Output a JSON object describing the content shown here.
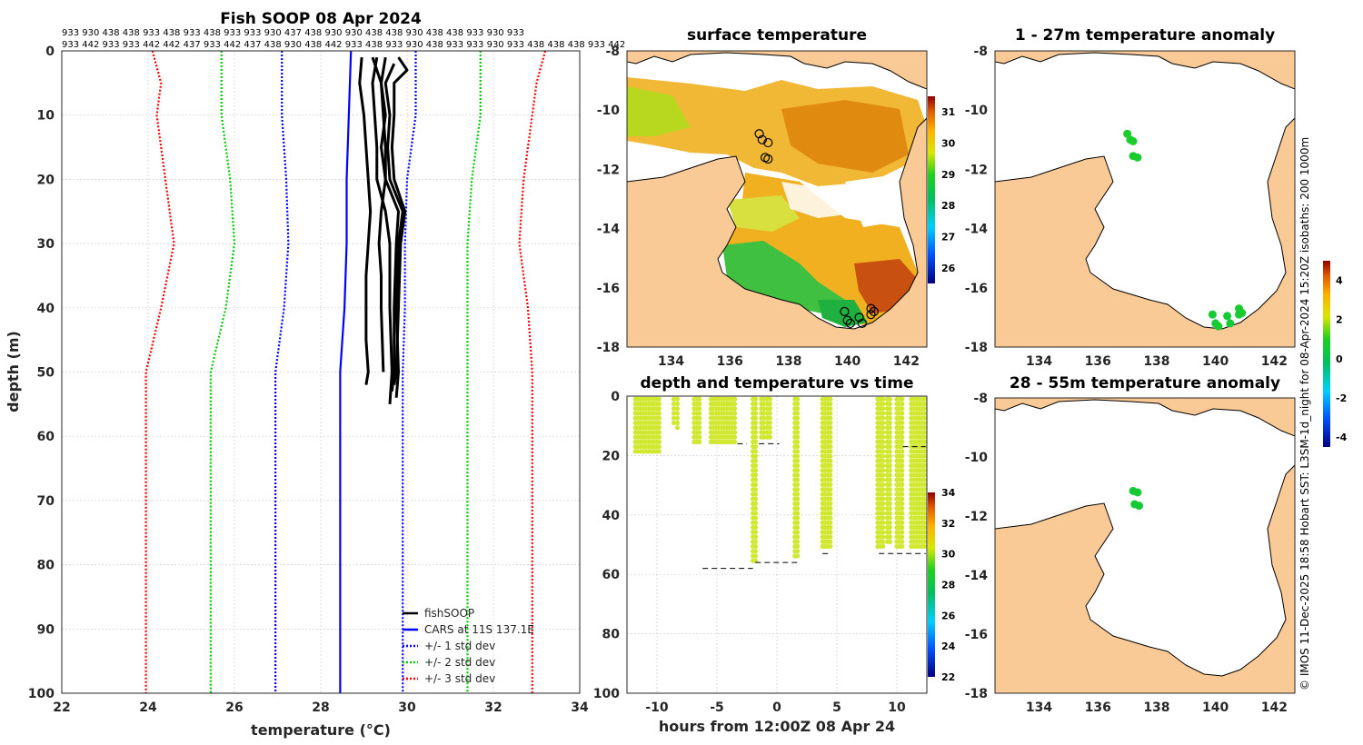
{
  "credit": "© IMOS 11-Dec-2025 18:58 Hobart SST: L3SM-1d_night for 08-Apr-2024 15:20Z isobaths: 200  1000m",
  "anomaly_colorbar": {
    "ticks": [
      "-4",
      "-2",
      "0",
      "2",
      "4"
    ]
  },
  "chart_data": [
    {
      "id": "profile",
      "type": "line",
      "title": "Fish SOOP 08 Apr 2024",
      "xlabel": "temperature (°C)",
      "ylabel": "depth (m)",
      "xlim": [
        22,
        34
      ],
      "ylim": [
        100,
        0
      ],
      "xticks": [
        "22",
        "24",
        "26",
        "28",
        "30",
        "32",
        "34"
      ],
      "yticks": [
        "0",
        "10",
        "20",
        "30",
        "40",
        "50",
        "60",
        "70",
        "80",
        "90",
        "100"
      ],
      "top_labels_row1": "933 930 438 438 933 438 933 438 933 933 930 437 438 930 930 438 438 930 438 438 933 930 933",
      "top_labels_row2": "933 442 933 933 442 442 437 933 442 437 438 930 438 442 933 438 933 930 438 933 933 930 933 438 438 438 933 442",
      "legend": [
        "fishSOOP",
        "CARS at 11S 137.1E",
        "+/- 1 std dev",
        "+/- 2 std dev",
        "+/- 3 std dev"
      ],
      "series": [
        {
          "name": "CARS at 11S 137.1E",
          "color": "#0000ff",
          "style": "solid",
          "depth": [
            0,
            10,
            20,
            30,
            40,
            50,
            100
          ],
          "temp": [
            28.7,
            28.65,
            28.6,
            28.6,
            28.55,
            28.45,
            28.45
          ]
        },
        {
          "name": "+1 std dev",
          "color": "#0000ff",
          "style": "dotted",
          "depth": [
            0,
            10,
            20,
            30,
            40,
            50,
            100
          ],
          "temp": [
            30.2,
            30.2,
            30.0,
            29.95,
            29.95,
            29.9,
            29.9
          ]
        },
        {
          "name": "-1 std dev",
          "color": "#0000ff",
          "style": "dotted",
          "depth": [
            0,
            10,
            20,
            30,
            40,
            50,
            100
          ],
          "temp": [
            27.1,
            27.1,
            27.2,
            27.25,
            27.15,
            26.95,
            26.95
          ]
        },
        {
          "name": "+2 std dev",
          "color": "#00cc00",
          "style": "dotted",
          "depth": [
            0,
            10,
            20,
            30,
            40,
            50,
            100
          ],
          "temp": [
            31.7,
            31.7,
            31.5,
            31.4,
            31.4,
            31.4,
            31.4
          ]
        },
        {
          "name": "-2 std dev",
          "color": "#00cc00",
          "style": "dotted",
          "depth": [
            0,
            10,
            20,
            30,
            40,
            50,
            100
          ],
          "temp": [
            25.7,
            25.7,
            25.9,
            26.0,
            25.8,
            25.45,
            25.45
          ]
        },
        {
          "name": "+3 std dev",
          "color": "#ff0000",
          "style": "dotted",
          "depth": [
            0,
            5,
            10,
            20,
            30,
            40,
            50,
            100
          ],
          "temp": [
            33.2,
            33.0,
            32.9,
            32.7,
            32.6,
            32.8,
            32.9,
            32.9
          ]
        },
        {
          "name": "-3 std dev",
          "color": "#ff0000",
          "style": "dotted",
          "depth": [
            0,
            5,
            10,
            20,
            30,
            40,
            50,
            100
          ],
          "temp": [
            24.1,
            24.3,
            24.2,
            24.4,
            24.6,
            24.3,
            23.95,
            23.95
          ]
        },
        {
          "name": "fishSOOP",
          "color": "#000000",
          "style": "solid",
          "casts": [
            {
              "depth": [
                1,
                5,
                10,
                15,
                20,
                25,
                30,
                35,
                40,
                45,
                50,
                52
              ],
              "temp": [
                28.95,
                28.9,
                29.0,
                29.05,
                29.1,
                29.15,
                29.1,
                29.05,
                29.05,
                29.05,
                29.1,
                29.05
              ]
            },
            {
              "depth": [
                1,
                5,
                10,
                15,
                20,
                25,
                30,
                40,
                50,
                55
              ],
              "temp": [
                29.3,
                29.2,
                29.25,
                29.3,
                29.3,
                29.5,
                29.6,
                29.6,
                29.65,
                29.6
              ]
            },
            {
              "depth": [
                1,
                5,
                10,
                15,
                20,
                25,
                30,
                40,
                50,
                53
              ],
              "temp": [
                29.5,
                29.4,
                29.45,
                29.5,
                29.5,
                29.8,
                29.75,
                29.7,
                29.7,
                29.65
              ]
            },
            {
              "depth": [
                2,
                5,
                10,
                15,
                20,
                25,
                30,
                40,
                50,
                54
              ],
              "temp": [
                29.7,
                29.5,
                29.6,
                29.55,
                29.6,
                29.9,
                29.8,
                29.75,
                29.8,
                29.75
              ]
            },
            {
              "depth": [
                1,
                3,
                5,
                10,
                15,
                20,
                25,
                30,
                40,
                50,
                52
              ],
              "temp": [
                29.8,
                30.0,
                29.7,
                29.7,
                29.65,
                29.7,
                29.95,
                29.85,
                29.8,
                29.75,
                29.7
              ]
            },
            {
              "depth": [
                1,
                5,
                10,
                15,
                20,
                25,
                30,
                35,
                40,
                50
              ],
              "temp": [
                29.2,
                29.4,
                29.5,
                29.4,
                29.5,
                29.4,
                29.35,
                29.4,
                29.4,
                29.45
              ]
            }
          ]
        }
      ]
    },
    {
      "id": "surface-temperature",
      "type": "heatmap",
      "title": "surface temperature",
      "xlim": [
        132.5,
        142.7
      ],
      "ylim": [
        -18,
        -8
      ],
      "xticks": [
        "134",
        "136",
        "138",
        "140",
        "142"
      ],
      "yticks": [
        "-8",
        "-10",
        "-12",
        "-14",
        "-16",
        "-18"
      ],
      "colorbar_ticks": [
        "26",
        "27",
        "28",
        "29",
        "30",
        "31"
      ],
      "stations": [
        {
          "lon": 137.0,
          "lat": -10.8
        },
        {
          "lon": 137.1,
          "lat": -11.0
        },
        {
          "lon": 137.3,
          "lat": -11.1
        },
        {
          "lon": 137.2,
          "lat": -11.6
        },
        {
          "lon": 137.3,
          "lat": -11.65
        },
        {
          "lon": 139.9,
          "lat": -16.8
        },
        {
          "lon": 140.0,
          "lat": -17.1
        },
        {
          "lon": 140.1,
          "lat": -17.2
        },
        {
          "lon": 140.4,
          "lat": -17.0
        },
        {
          "lon": 140.5,
          "lat": -17.2
        },
        {
          "lon": 140.8,
          "lat": -16.7
        },
        {
          "lon": 140.8,
          "lat": -16.9
        },
        {
          "lon": 140.9,
          "lat": -16.8
        }
      ]
    },
    {
      "id": "depth-time",
      "type": "scatter",
      "title": "depth and temperature vs time",
      "xlabel": "hours from 12:00Z 08 Apr 24",
      "xlim": [
        -12.5,
        12.5
      ],
      "ylim": [
        100,
        0
      ],
      "xticks": [
        "-10",
        "-5",
        "0",
        "5",
        "10"
      ],
      "yticks": [
        "0",
        "20",
        "40",
        "60",
        "80",
        "100"
      ],
      "colorbar_ticks": [
        "22",
        "24",
        "26",
        "28",
        "30",
        "32",
        "34"
      ],
      "casts": [
        {
          "t0": -11.8,
          "t1": -9.8,
          "dmax": 19
        },
        {
          "t0": -8.6,
          "t1": -8.4,
          "dmax": 10
        },
        {
          "t0": -8.3,
          "t1": -8.1,
          "dmax": 12
        },
        {
          "t0": -6.9,
          "t1": -6.4,
          "dmax": 16
        },
        {
          "t0": -5.5,
          "t1": -3.4,
          "dmax": 16
        },
        {
          "t0": -2.0,
          "t1": -1.6,
          "dmax": 56
        },
        {
          "t0": -1.3,
          "t1": -0.9,
          "dmax": 15
        },
        {
          "t0": -0.8,
          "t1": -0.4,
          "dmax": 15
        },
        {
          "t0": 1.5,
          "t1": 1.9,
          "dmax": 54
        },
        {
          "t0": 3.8,
          "t1": 4.5,
          "dmax": 52
        },
        {
          "t0": 8.4,
          "t1": 9.0,
          "dmax": 52
        },
        {
          "t0": 9.2,
          "t1": 9.6,
          "dmax": 50
        },
        {
          "t0": 10.0,
          "t1": 10.6,
          "dmax": 52
        },
        {
          "t0": 11.2,
          "t1": 12.4,
          "dmax": 52
        }
      ],
      "bottom_depth_marks": [
        {
          "t0": -6.2,
          "t1": -2.0,
          "d": 58
        },
        {
          "t0": -1.8,
          "t1": 1.8,
          "d": 56
        },
        {
          "t0": 3.8,
          "t1": 4.5,
          "d": 53
        },
        {
          "t0": 8.5,
          "t1": 12.4,
          "d": 53
        },
        {
          "t0": -1.5,
          "t1": 0.2,
          "d": 16
        },
        {
          "t0": -3.3,
          "t1": -2.5,
          "d": 16
        },
        {
          "t0": 10.5,
          "t1": 12.4,
          "d": 17
        }
      ]
    },
    {
      "id": "anomaly-1-27m",
      "type": "scatter",
      "title": "1 - 27m temperature anomaly",
      "xlim": [
        132.5,
        142.7
      ],
      "ylim": [
        -18,
        -8
      ],
      "xticks": [
        "134",
        "136",
        "138",
        "140",
        "142"
      ],
      "yticks": [
        "-8",
        "-10",
        "-12",
        "-14",
        "-16",
        "-18"
      ],
      "points": [
        {
          "lon": 137.0,
          "lat": -10.8,
          "anom": 0.8
        },
        {
          "lon": 137.1,
          "lat": -11.0,
          "anom": 0.9
        },
        {
          "lon": 137.2,
          "lat": -11.05,
          "anom": 0.8
        },
        {
          "lon": 137.2,
          "lat": -11.55,
          "anom": 0.7
        },
        {
          "lon": 137.35,
          "lat": -11.6,
          "anom": 0.7
        },
        {
          "lon": 139.9,
          "lat": -16.9,
          "anom": 0.6
        },
        {
          "lon": 140.0,
          "lat": -17.2,
          "anom": 0.6
        },
        {
          "lon": 140.1,
          "lat": -17.3,
          "anom": 0.7
        },
        {
          "lon": 140.4,
          "lat": -16.95,
          "anom": 0.6
        },
        {
          "lon": 140.5,
          "lat": -17.2,
          "anom": 0.6
        },
        {
          "lon": 140.8,
          "lat": -16.7,
          "anom": 0.7
        },
        {
          "lon": 140.8,
          "lat": -16.9,
          "anom": 0.6
        },
        {
          "lon": 140.9,
          "lat": -16.85,
          "anom": 0.7
        }
      ]
    },
    {
      "id": "anomaly-28-55m",
      "type": "scatter",
      "title": "28 - 55m temperature anomaly",
      "xlim": [
        132.5,
        142.7
      ],
      "ylim": [
        -18,
        -8
      ],
      "xticks": [
        "134",
        "136",
        "138",
        "140",
        "142"
      ],
      "yticks": [
        "-8",
        "-10",
        "-12",
        "-14",
        "-16",
        "-18"
      ],
      "points": [
        {
          "lon": 137.2,
          "lat": -11.15,
          "anom": 0.6
        },
        {
          "lon": 137.35,
          "lat": -11.2,
          "anom": 0.6
        },
        {
          "lon": 137.25,
          "lat": -11.6,
          "anom": 0.6
        },
        {
          "lon": 137.4,
          "lat": -11.65,
          "anom": 0.6
        }
      ]
    }
  ]
}
